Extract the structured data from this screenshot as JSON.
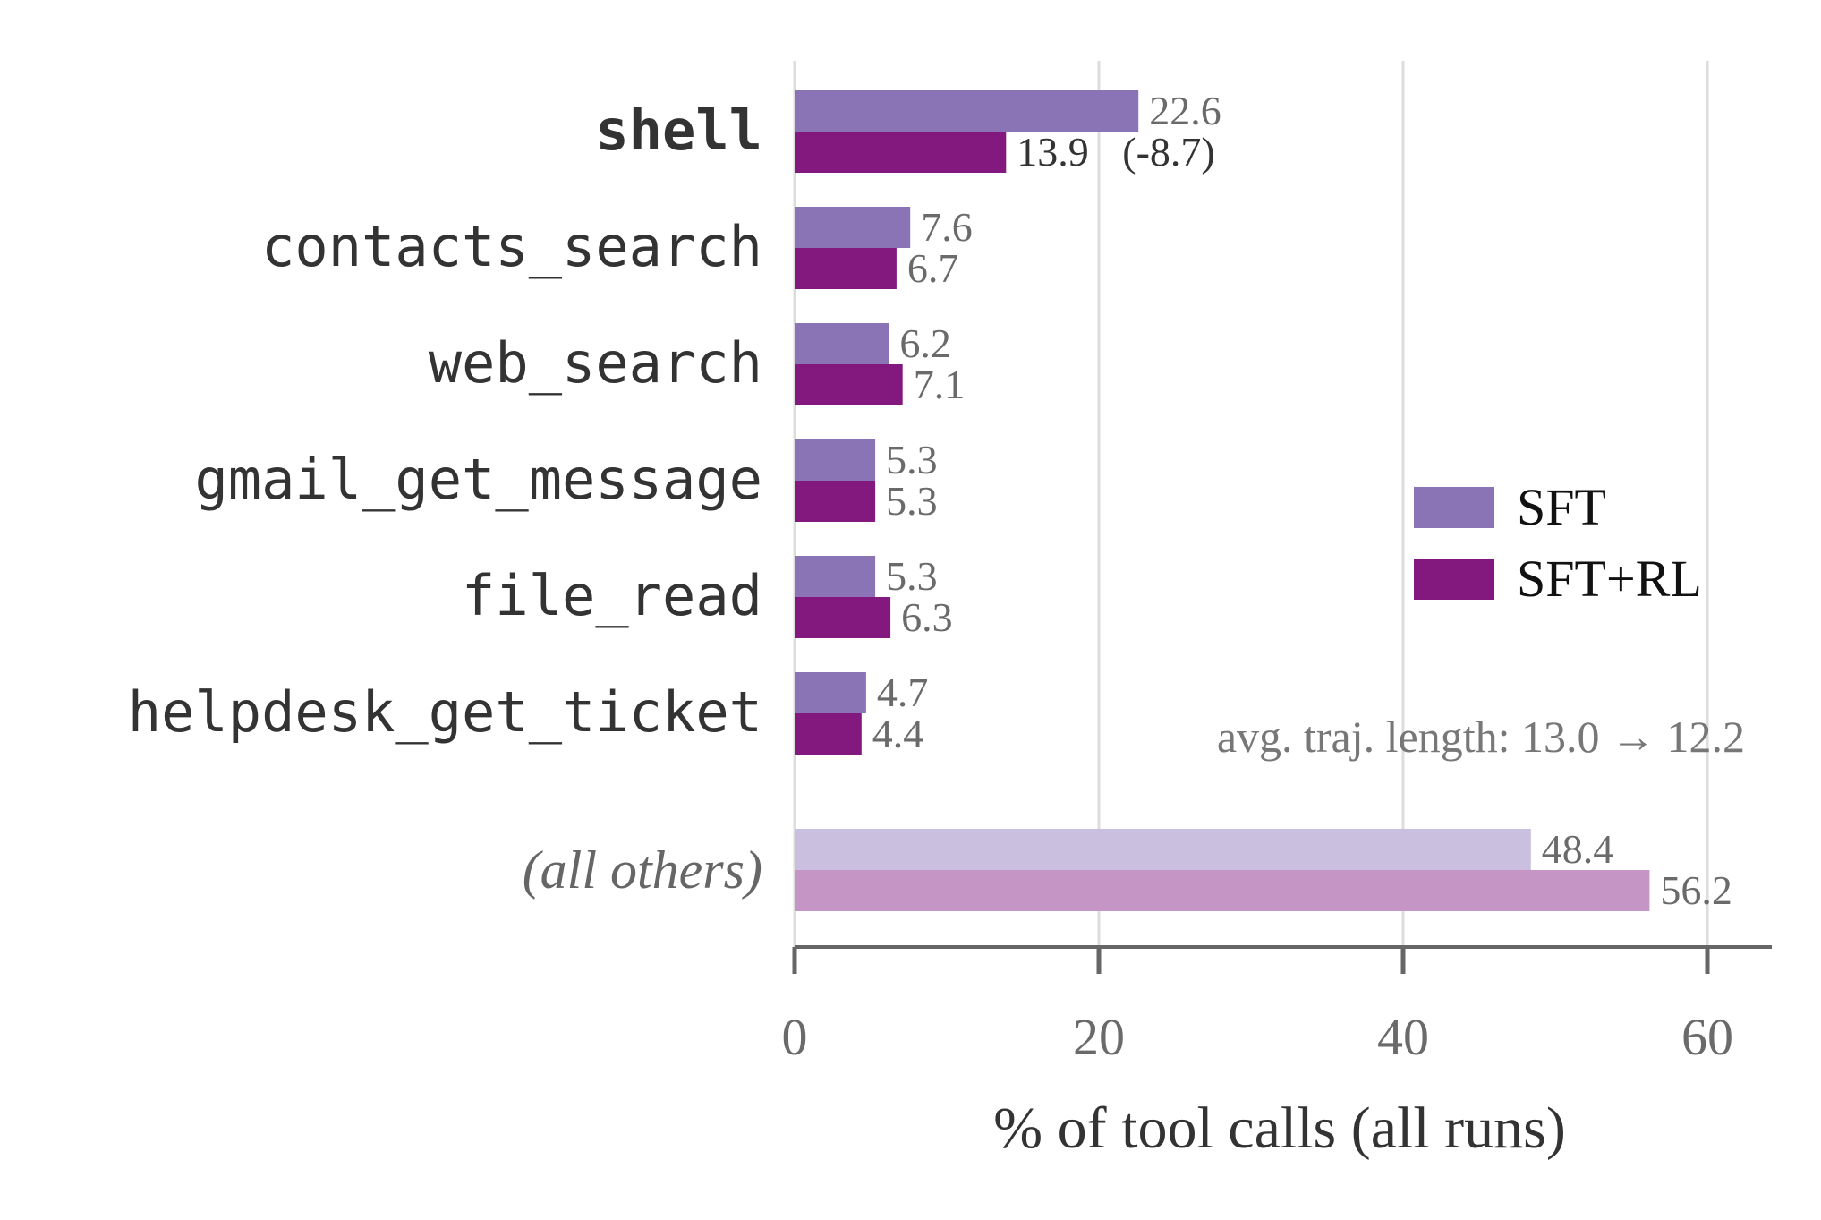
{
  "chart_data": {
    "type": "bar",
    "orientation": "horizontal",
    "categories": [
      "shell",
      "contacts_search",
      "web_search",
      "gmail_get_message",
      "file_read",
      "helpdesk_get_ticket",
      "(all others)"
    ],
    "highlighted_category": "shell",
    "series": [
      {
        "name": "SFT",
        "color": "#8b74b6",
        "values": [
          22.6,
          7.6,
          6.2,
          5.3,
          5.3,
          4.7,
          48.4
        ]
      },
      {
        "name": "SFT+RL",
        "color": "#83197f",
        "values": [
          13.9,
          6.7,
          7.1,
          5.3,
          6.3,
          4.4,
          56.2
        ]
      }
    ],
    "others_colors": {
      "SFT": "#cbbfdf",
      "SFT+RL": "#c596c5"
    },
    "value_labels": {
      "SFT": [
        "22.6",
        "7.6",
        "6.2",
        "5.3",
        "5.3",
        "4.7",
        "48.4"
      ],
      "SFT+RL": [
        "13.9",
        "6.7",
        "7.1",
        "5.3",
        "6.3",
        "4.4",
        "56.2"
      ]
    },
    "shell_delta_label": "(-8.7)",
    "xlabel": "% of tool calls (all runs)",
    "xlim": [
      0,
      64
    ],
    "xticks": [
      0,
      20,
      40,
      60
    ],
    "xtick_labels": [
      "0",
      "20",
      "40",
      "60"
    ],
    "grid": true,
    "legend": {
      "placement": "right",
      "entries": [
        "SFT",
        "SFT+RL"
      ]
    },
    "annotation": "avg. traj. length: 13.0 → 12.2"
  }
}
